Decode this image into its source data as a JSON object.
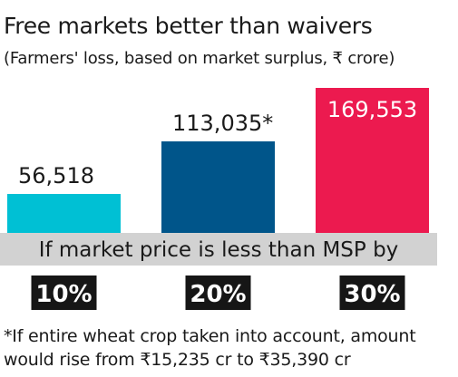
{
  "header": {
    "title": "Free markets better than waivers",
    "subtitle": "(Farmers' loss, based on market surplus, ₹ crore)"
  },
  "chart_data": {
    "type": "bar",
    "categories": [
      "10%",
      "20%",
      "30%"
    ],
    "values": [
      56518,
      113035,
      169553
    ],
    "value_labels": [
      "56,518",
      "113,035*",
      "169,553"
    ],
    "colors": [
      "#00c0d4",
      "#00558a",
      "#ec1a4f"
    ],
    "category_label_bg": "#161616",
    "band_bg": "#d2d2d2",
    "band_text": "If market price is less than MSP by",
    "ylim": [
      0,
      169553
    ],
    "grid": false
  },
  "footnote": "*If entire wheat crop taken into account, amount would rise from ₹15,235 cr to ₹35,390 cr"
}
